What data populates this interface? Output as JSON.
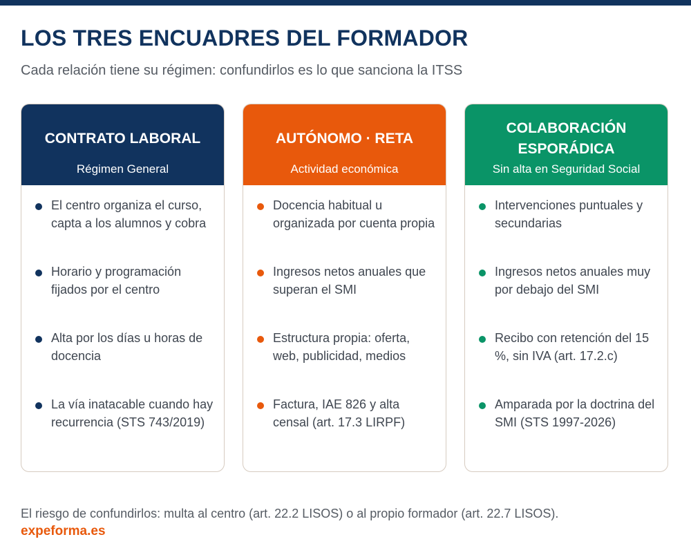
{
  "header": {
    "title": "LOS TRES ENCUADRES DEL FORMADOR",
    "subtitle": "Cada relación tiene su régimen: confundirlos es lo que sanciona la ITSS"
  },
  "cards": [
    {
      "title": "CONTRATO LABORAL",
      "subtitle": "Régimen General",
      "color": "#11335e",
      "items": [
        "El centro organiza el curso, capta a los alumnos y cobra",
        "Horario y programación fijados por el centro",
        "Alta por los días u horas de docencia",
        "La vía inatacable cuando hay recurrencia (STS 743/2019)"
      ]
    },
    {
      "title": "AUTÓNOMO · RETA",
      "subtitle": "Actividad económica",
      "color": "#e8590c",
      "items": [
        "Docencia habitual u organizada por cuenta propia",
        "Ingresos netos anuales que superan el SMI",
        "Estructura propia: oferta, web, publicidad, medios",
        "Factura, IAE 826 y alta censal (art. 17.3 LIRPF)"
      ]
    },
    {
      "title": "COLABORACIÓN ESPORÁDICA",
      "subtitle": "Sin alta en Seguridad Social",
      "color": "#0a9467",
      "items": [
        "Intervenciones puntuales y secundarias",
        "Ingresos netos anuales muy por debajo del SMI",
        "Recibo con retención del 15 %, sin IVA (art. 17.2.c)",
        "Amparada por la doctrina del SMI (STS 1997-2026)"
      ]
    }
  ],
  "footer": {
    "note": "El riesgo de confundirlos: multa al centro (art. 22.2 LISOS) o al propio formador (art. 22.7 LISOS).",
    "brand": "expeforma.es"
  }
}
